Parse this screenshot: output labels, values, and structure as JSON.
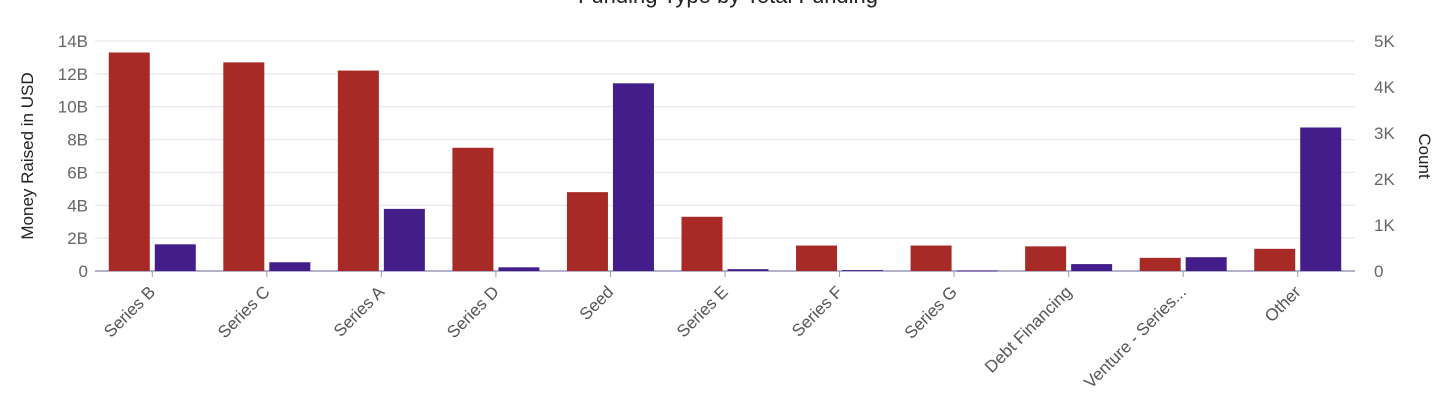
{
  "chart_data": {
    "type": "bar",
    "title": "Funding Type by Total Funding",
    "categories": [
      "Series B",
      "Series C",
      "Series A",
      "Series D",
      "Seed",
      "Series E",
      "Series F",
      "Series G",
      "Debt Financing",
      "Venture - Series...",
      "Other"
    ],
    "series": [
      {
        "axis": "left",
        "color": "#a82a27",
        "values": [
          13.3,
          12.7,
          12.2,
          7.5,
          4.8,
          3.3,
          1.55,
          1.55,
          1.5,
          0.8,
          1.35
        ]
      },
      {
        "axis": "right",
        "color": "#431d89",
        "values": [
          580,
          190,
          1350,
          80,
          4080,
          40,
          20,
          10,
          150,
          300,
          3120
        ]
      }
    ],
    "ylabel": "Money Raised in USD",
    "y2label": "Count",
    "ylim": [
      0,
      14
    ],
    "y2lim": [
      0,
      5000
    ],
    "yticks": [
      "0",
      "2B",
      "4B",
      "6B",
      "8B",
      "10B",
      "12B",
      "14B"
    ],
    "y2ticks": [
      "0",
      "1K",
      "2K",
      "3K",
      "4K",
      "5K"
    ],
    "grid": true,
    "legend": "none"
  }
}
